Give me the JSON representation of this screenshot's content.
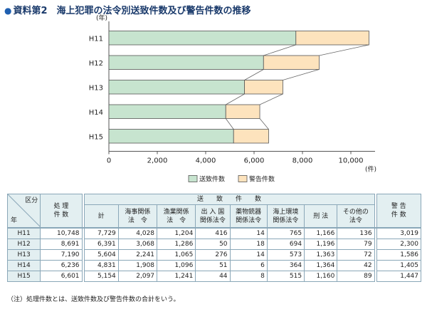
{
  "title": "資料第2　海上犯罪の法令別送致件数及び警告件数の推移",
  "chart_data": {
    "type": "bar",
    "stacked": true,
    "orientation": "horizontal",
    "categories": [
      "H11",
      "H12",
      "H13",
      "H14",
      "H15"
    ],
    "series": [
      {
        "name": "送致件数",
        "values": [
          7729,
          6391,
          5604,
          4831,
          5154
        ],
        "color": "#c7e4cf"
      },
      {
        "name": "警告件数",
        "values": [
          3019,
          2300,
          1586,
          1405,
          1447
        ],
        "color": "#fde3bd"
      }
    ],
    "x_ticks": [
      "0",
      "2,000",
      "4,000",
      "6,000",
      "8,000",
      "10,000"
    ],
    "x_tick_values": [
      0,
      2000,
      4000,
      6000,
      8000,
      10000
    ],
    "xlim": [
      0,
      11000
    ],
    "xlabel": "(件)",
    "ylabel": "(年)",
    "legend_position": "bottom"
  },
  "table": {
    "corner_top": "区分",
    "corner_bottom": "年",
    "total_header": "処 理\n件 数",
    "group_header": "送　　致　　件　　数",
    "sub_headers": [
      "計",
      "海事関係\n法　令",
      "漁業関係\n法　令",
      "出 入 国\n関係法令",
      "薬物銃器\n関係法令",
      "海上環境\n関係法令",
      "刑 法",
      "その他の\n法令"
    ],
    "warn_header": "警 告\n件 数",
    "rows": [
      {
        "year": "H11",
        "total": "10,748",
        "send": [
          "7,729",
          "4,028",
          "1,204",
          "416",
          "14",
          "765",
          "1,166",
          "136"
        ],
        "warn": "3,019"
      },
      {
        "year": "H12",
        "total": "8,691",
        "send": [
          "6,391",
          "3,068",
          "1,286",
          "50",
          "18",
          "694",
          "1,196",
          "79"
        ],
        "warn": "2,300"
      },
      {
        "year": "H13",
        "total": "7,190",
        "send": [
          "5,604",
          "2,241",
          "1,065",
          "276",
          "14",
          "573",
          "1,363",
          "72"
        ],
        "warn": "1,586"
      },
      {
        "year": "H14",
        "total": "6,236",
        "send": [
          "4,831",
          "1,908",
          "1,096",
          "51",
          "6",
          "364",
          "1,364",
          "42"
        ],
        "warn": "1,405"
      },
      {
        "year": "H15",
        "total": "6,601",
        "send": [
          "5,154",
          "2,097",
          "1,241",
          "44",
          "8",
          "515",
          "1,160",
          "89"
        ],
        "warn": "1,447"
      }
    ]
  },
  "note": "（注）処理件数とは、送致件数及び警告件数の合計をいう。"
}
